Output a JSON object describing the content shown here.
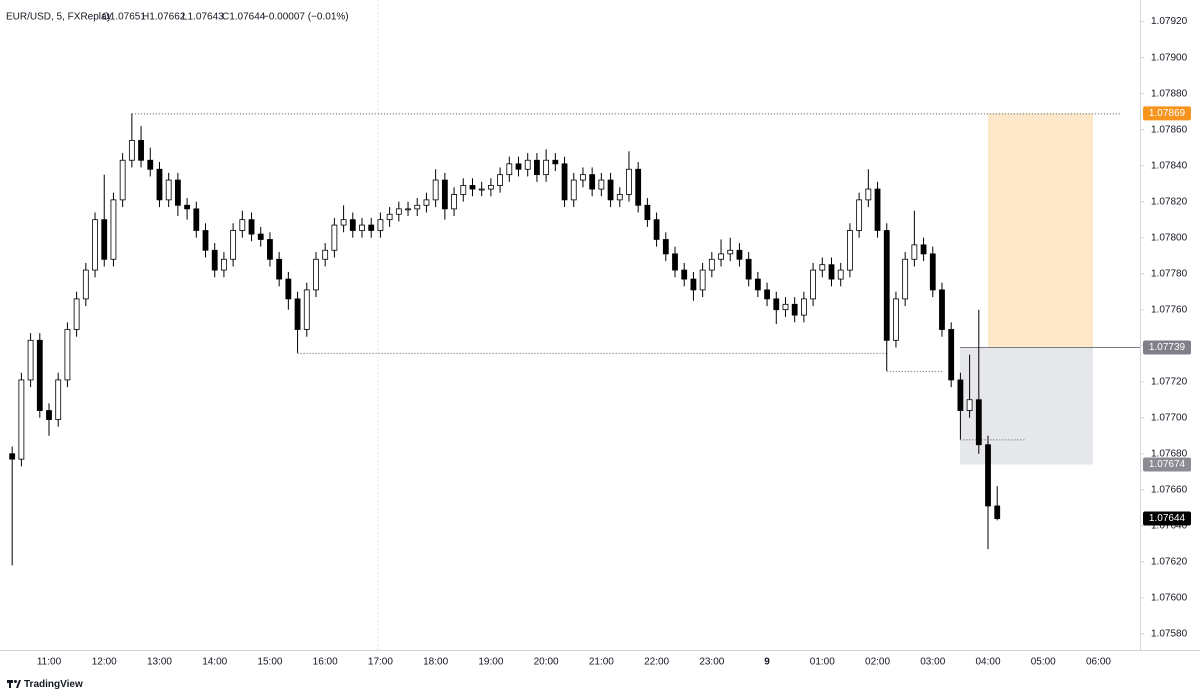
{
  "header": {
    "symbol": "EUR/USD, 5, FXReplay",
    "open": "O1.07651",
    "high": "H1.07662",
    "low": "L1.07643",
    "close": "C1.07644",
    "change": "−0.00007 (−0.01%)"
  },
  "footer": {
    "brand": "TradingView"
  },
  "chart_data": {
    "type": "candlestick",
    "categories": [
      null,
      null,
      null,
      null,
      "11:00",
      null,
      null,
      null,
      null,
      null,
      "12:00",
      null,
      null,
      null,
      null,
      null,
      "13:00",
      null,
      null,
      null,
      null,
      null,
      "14:00",
      null,
      null,
      null,
      null,
      null,
      "15:00",
      null,
      null,
      null,
      null,
      null,
      "16:00",
      null,
      null,
      null,
      null,
      null,
      "17:00",
      null,
      null,
      null,
      null,
      null,
      "18:00",
      null,
      null,
      null,
      null,
      null,
      "19:00",
      null,
      null,
      null,
      null,
      null,
      "20:00",
      null,
      null,
      null,
      null,
      null,
      "21:00",
      null,
      null,
      null,
      null,
      null,
      "22:00",
      null,
      null,
      null,
      null,
      null,
      "23:00",
      null,
      null,
      null,
      null,
      null,
      "9",
      null,
      null,
      null,
      null,
      null,
      "01:00",
      null,
      null,
      null,
      null,
      null,
      "02:00",
      null,
      null,
      null,
      null,
      null,
      "03:00",
      null,
      null,
      null,
      null,
      null,
      "04:00",
      null,
      null,
      null,
      null,
      null,
      "05:00",
      null,
      null,
      null,
      null,
      null,
      "06:00",
      null,
      null
    ],
    "open": [
      1.0768,
      1.07677,
      1.07721,
      1.07743,
      1.07704,
      1.07699,
      1.07721,
      1.07749,
      1.07766,
      1.07782,
      1.0781,
      1.07788,
      1.07821,
      1.07843,
      1.07854,
      1.07843,
      1.07838,
      1.07821,
      1.07832,
      1.07818,
      1.07816,
      1.07804,
      1.07793,
      1.07782,
      1.07788,
      1.07804,
      1.0781,
      1.07802,
      1.07799,
      1.07788,
      1.07777,
      1.07766,
      1.07749,
      1.07771,
      1.07788,
      1.07793,
      1.07807,
      1.0781,
      1.07804,
      1.07807,
      1.07804,
      1.0781,
      1.07813,
      1.07816,
      1.07816,
      1.07818,
      1.07821,
      1.07832,
      1.07816,
      1.07824,
      1.07829,
      1.07827,
      1.07827,
      1.07829,
      1.07835,
      1.07841,
      1.07838,
      1.07843,
      1.07835,
      1.07843,
      1.07841,
      1.07821,
      1.07832,
      1.07835,
      1.07827,
      1.07832,
      1.07821,
      1.07824,
      1.07838,
      1.07818,
      1.0781,
      1.07799,
      1.07791,
      1.07782,
      1.07777,
      1.07771,
      1.07782,
      1.07788,
      1.07791,
      1.07793,
      1.07788,
      1.07777,
      1.07771,
      1.07766,
      1.0776,
      1.07763,
      1.07757,
      1.07766,
      1.07782,
      1.07785,
      1.07777,
      1.07782,
      1.07804,
      1.07821,
      1.07827,
      1.07804,
      1.07743,
      1.07766,
      1.07788,
      1.07796,
      1.07791,
      1.07771,
      1.07749,
      1.07721,
      1.07704,
      1.0771,
      1.07685,
      1.07651,
      null,
      null,
      null,
      null,
      null,
      null,
      null,
      null,
      null,
      null,
      null,
      null,
      null
    ],
    "high": [
      1.07684,
      1.07725,
      1.07747,
      1.07747,
      1.07708,
      1.07725,
      1.07753,
      1.0777,
      1.07786,
      1.07814,
      1.07835,
      1.07825,
      1.07847,
      1.07869,
      1.07862,
      1.0785,
      1.07842,
      1.07836,
      1.07836,
      1.07822,
      1.0782,
      1.07808,
      1.07797,
      1.07792,
      1.07808,
      1.07815,
      1.07814,
      1.07806,
      1.07803,
      1.07792,
      1.07781,
      1.0777,
      1.07775,
      1.07792,
      1.07797,
      1.07811,
      1.07818,
      1.07814,
      1.07811,
      1.07811,
      1.07814,
      1.07817,
      1.0782,
      1.0782,
      1.07822,
      1.07825,
      1.07838,
      1.07836,
      1.07828,
      1.07833,
      1.07833,
      1.07831,
      1.07833,
      1.07839,
      1.07845,
      1.07845,
      1.07847,
      1.07847,
      1.07849,
      1.07847,
      1.07845,
      1.07836,
      1.07839,
      1.07839,
      1.07836,
      1.07836,
      1.07828,
      1.07848,
      1.07842,
      1.07822,
      1.07814,
      1.07803,
      1.07795,
      1.07786,
      1.07781,
      1.07786,
      1.07792,
      1.07799,
      1.078,
      1.07797,
      1.07792,
      1.07781,
      1.07775,
      1.0777,
      1.07767,
      1.07767,
      1.0777,
      1.07786,
      1.07789,
      1.07789,
      1.07786,
      1.07808,
      1.07825,
      1.07838,
      1.07831,
      1.07808,
      1.0777,
      1.07792,
      1.07815,
      1.078,
      1.07795,
      1.07775,
      1.07753,
      1.07725,
      1.07735,
      1.0776,
      1.0769,
      1.07662,
      null,
      null,
      null,
      null,
      null,
      null,
      null,
      null,
      null,
      null,
      null,
      null,
      null
    ],
    "low": [
      1.07618,
      1.07673,
      1.07717,
      1.077,
      1.0769,
      1.07695,
      1.07717,
      1.07745,
      1.07762,
      1.07778,
      1.07784,
      1.07784,
      1.07817,
      1.07839,
      1.07839,
      1.07834,
      1.07817,
      1.07817,
      1.07812,
      1.0781,
      1.078,
      1.07789,
      1.07778,
      1.07778,
      1.07784,
      1.078,
      1.07798,
      1.07795,
      1.07784,
      1.07773,
      1.0776,
      1.07736,
      1.07745,
      1.07767,
      1.07784,
      1.07789,
      1.07803,
      1.078,
      1.078,
      1.078,
      1.078,
      1.07806,
      1.07809,
      1.07812,
      1.07812,
      1.07814,
      1.07817,
      1.0781,
      1.07812,
      1.0782,
      1.07823,
      1.07823,
      1.07823,
      1.07825,
      1.07831,
      1.07834,
      1.07834,
      1.07831,
      1.07831,
      1.07837,
      1.07817,
      1.07817,
      1.07828,
      1.07823,
      1.07823,
      1.07817,
      1.07817,
      1.0782,
      1.07814,
      1.07806,
      1.07795,
      1.07787,
      1.07778,
      1.07773,
      1.07765,
      1.07767,
      1.07778,
      1.07784,
      1.07787,
      1.07784,
      1.07773,
      1.07767,
      1.07762,
      1.07752,
      1.07756,
      1.07753,
      1.07753,
      1.07762,
      1.07778,
      1.07773,
      1.07773,
      1.07778,
      1.078,
      1.07817,
      1.078,
      1.07726,
      1.07739,
      1.07762,
      1.07784,
      1.07787,
      1.07767,
      1.07745,
      1.07717,
      1.07688,
      1.077,
      1.0768,
      1.07627,
      1.07643,
      null,
      null,
      null,
      null,
      null,
      null,
      null,
      null,
      null,
      null,
      null,
      null,
      null
    ],
    "close": [
      1.07677,
      1.07721,
      1.07743,
      1.07704,
      1.07699,
      1.07721,
      1.07749,
      1.07766,
      1.07782,
      1.0781,
      1.07788,
      1.07821,
      1.07843,
      1.07854,
      1.07843,
      1.07838,
      1.07821,
      1.07832,
      1.07818,
      1.07816,
      1.07804,
      1.07793,
      1.07782,
      1.07788,
      1.07804,
      1.0781,
      1.07802,
      1.07799,
      1.07788,
      1.07777,
      1.07766,
      1.07749,
      1.07771,
      1.07788,
      1.07793,
      1.07807,
      1.0781,
      1.07804,
      1.07807,
      1.07804,
      1.0781,
      1.07813,
      1.07816,
      1.07816,
      1.07818,
      1.07821,
      1.07832,
      1.07816,
      1.07824,
      1.07829,
      1.07827,
      1.07827,
      1.07829,
      1.07835,
      1.07841,
      1.07838,
      1.07843,
      1.07835,
      1.07843,
      1.07841,
      1.07821,
      1.07832,
      1.07835,
      1.07827,
      1.07832,
      1.07821,
      1.07824,
      1.07838,
      1.07818,
      1.0781,
      1.07799,
      1.07791,
      1.07782,
      1.07777,
      1.07771,
      1.07782,
      1.07788,
      1.07791,
      1.07793,
      1.07788,
      1.07777,
      1.07771,
      1.07766,
      1.0776,
      1.07763,
      1.07757,
      1.07766,
      1.07782,
      1.07785,
      1.07777,
      1.07782,
      1.07804,
      1.07821,
      1.07827,
      1.07804,
      1.07743,
      1.07766,
      1.07788,
      1.07796,
      1.07791,
      1.07771,
      1.07749,
      1.07721,
      1.07704,
      1.0771,
      1.07685,
      1.07651,
      1.07644,
      null,
      null,
      null,
      null,
      null,
      null,
      null,
      null,
      null,
      null,
      null,
      null,
      null
    ],
    "up_color": "#ffffff",
    "down_color": "#000000",
    "outline_color": "#000000",
    "ylim": [
      1.07571,
      1.07932
    ],
    "yticks": [
      {
        "value": 1.0758,
        "label": "1.07580"
      },
      {
        "value": 1.076,
        "label": "1.07600"
      },
      {
        "value": 1.0762,
        "label": "1.07620"
      },
      {
        "value": 1.0764,
        "label": "1.07640"
      },
      {
        "value": 1.0766,
        "label": "1.07660"
      },
      {
        "value": 1.0768,
        "label": "1.07680"
      },
      {
        "value": 1.077,
        "label": "1.07700"
      },
      {
        "value": 1.0772,
        "label": "1.07720"
      },
      {
        "value": 1.0774,
        "label": "1.07740"
      },
      {
        "value": 1.0776,
        "label": "1.07760"
      },
      {
        "value": 1.0778,
        "label": "1.07780"
      },
      {
        "value": 1.078,
        "label": "1.07800"
      },
      {
        "value": 1.0782,
        "label": "1.07820"
      },
      {
        "value": 1.0784,
        "label": "1.07840"
      },
      {
        "value": 1.0786,
        "label": "1.07860"
      },
      {
        "value": 1.0788,
        "label": "1.07880"
      },
      {
        "value": 1.079,
        "label": "1.07900"
      },
      {
        "value": 1.0792,
        "label": "1.07920"
      }
    ],
    "price_labels": [
      {
        "value": 1.07869,
        "label": "1.07869",
        "color": "#f7941d"
      },
      {
        "value": 1.07739,
        "label": "1.07739",
        "color": "#7f8087"
      },
      {
        "value": 1.07674,
        "label": "1.07674",
        "color": "#8b8c93"
      },
      {
        "value": 1.07644,
        "label": "1.07644",
        "color": "#000000"
      }
    ]
  }
}
